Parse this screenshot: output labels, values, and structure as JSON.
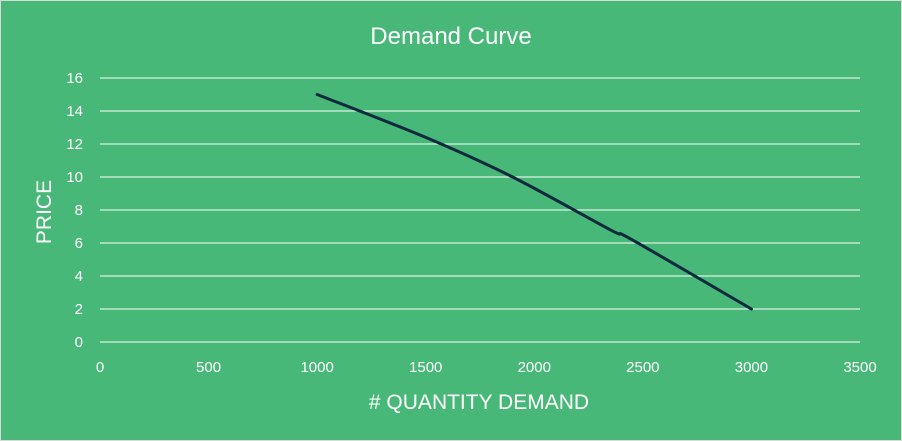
{
  "chart_data": {
    "type": "line",
    "title": "Demand Curve",
    "xlabel": "# QUANTITY DEMAND",
    "ylabel": "PRICE",
    "xlim": [
      0,
      3500
    ],
    "ylim": [
      0,
      16
    ],
    "x_ticks": [
      0,
      500,
      1000,
      1500,
      2000,
      2500,
      3000,
      3500
    ],
    "y_ticks": [
      0,
      2,
      4,
      6,
      8,
      10,
      12,
      14,
      16
    ],
    "grid": "horizontal",
    "legend": "none",
    "smooth": true,
    "series": [
      {
        "x": [
          1000,
          1500,
          1900,
          2350,
          2450,
          3000
        ],
        "y": [
          15,
          12.4,
          10,
          6.8,
          6.2,
          2
        ],
        "color": "#0f2a3f"
      }
    ]
  },
  "colors": {
    "background": "#47b877",
    "gridline": "#ffffff",
    "text": "#ffffff",
    "line": "#0f2a3f"
  }
}
